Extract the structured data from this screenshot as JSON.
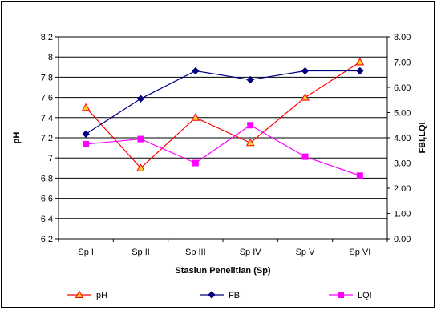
{
  "chart_data": {
    "type": "line",
    "categories": [
      "Sp I",
      "Sp II",
      "Sp III",
      "Sp IV",
      "Sp V",
      "Sp VI"
    ],
    "xlabel": "Stasiun Penelitian (Sp)",
    "ylabel_left": "pH",
    "ylabel_right": "FBI,LQI",
    "ylim_left": [
      6.2,
      8.2
    ],
    "ylim_right": [
      0.0,
      8.0
    ],
    "yticks_left": [
      "6.2",
      "6.4",
      "6.6",
      "6.8",
      "7",
      "7.2",
      "7.4",
      "7.6",
      "7.8",
      "8",
      "8.2"
    ],
    "yticks_right": [
      "0.00",
      "1.00",
      "2.00",
      "3.00",
      "4.00",
      "5.00",
      "6.00",
      "7.00",
      "8.00"
    ],
    "grid": true,
    "legend_position": "bottom",
    "series": [
      {
        "name": "pH",
        "axis": "left",
        "color": "#ff0000",
        "marker": "triangle",
        "marker_fill": "#ffcc33",
        "values": [
          7.5,
          6.9,
          7.4,
          7.15,
          7.6,
          7.95
        ]
      },
      {
        "name": "FBI",
        "axis": "right",
        "color": "#000080",
        "marker": "diamond",
        "marker_fill": "#000080",
        "values": [
          4.15,
          5.55,
          6.65,
          6.3,
          6.65,
          6.65
        ]
      },
      {
        "name": "LQI",
        "axis": "right",
        "color": "#ff00ff",
        "marker": "square",
        "marker_fill": "#ff00ff",
        "values": [
          3.75,
          3.95,
          3.0,
          4.5,
          3.25,
          2.5
        ]
      }
    ]
  }
}
